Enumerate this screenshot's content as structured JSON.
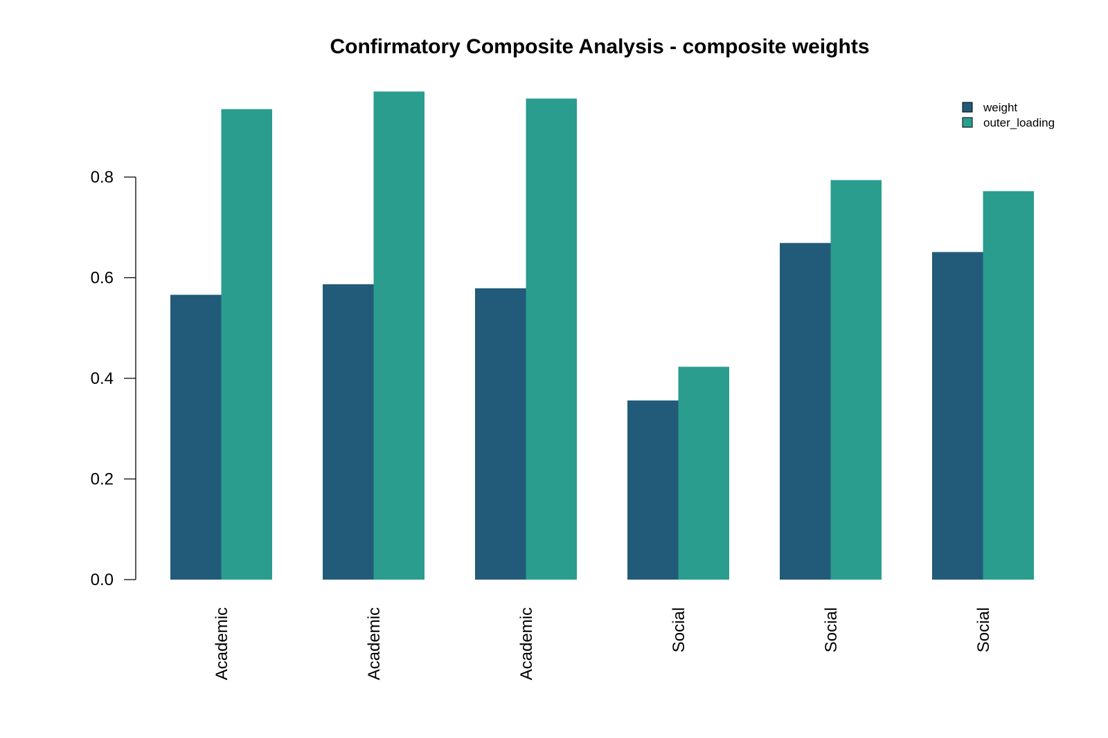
{
  "chart_data": {
    "type": "bar",
    "title": "Confirmatory Composite Analysis - composite weights",
    "xlabel": "",
    "ylabel": "",
    "categories": [
      "Academic",
      "Academic",
      "Academic",
      "Social",
      "Social",
      "Social"
    ],
    "series": [
      {
        "name": "weight",
        "color": "#225B79",
        "values": [
          0.566,
          0.587,
          0.579,
          0.356,
          0.669,
          0.651
        ]
      },
      {
        "name": "outer_loading",
        "color": "#2A9D8F",
        "values": [
          0.935,
          0.97,
          0.956,
          0.423,
          0.794,
          0.772
        ]
      }
    ],
    "ylim": [
      0,
      1.0
    ],
    "yticks": [
      0.0,
      0.2,
      0.4,
      0.6,
      0.8
    ],
    "ytick_labels": [
      "0.0",
      "0.2",
      "0.4",
      "0.6",
      "0.8"
    ],
    "grid": false,
    "legend_position": "top-right"
  }
}
